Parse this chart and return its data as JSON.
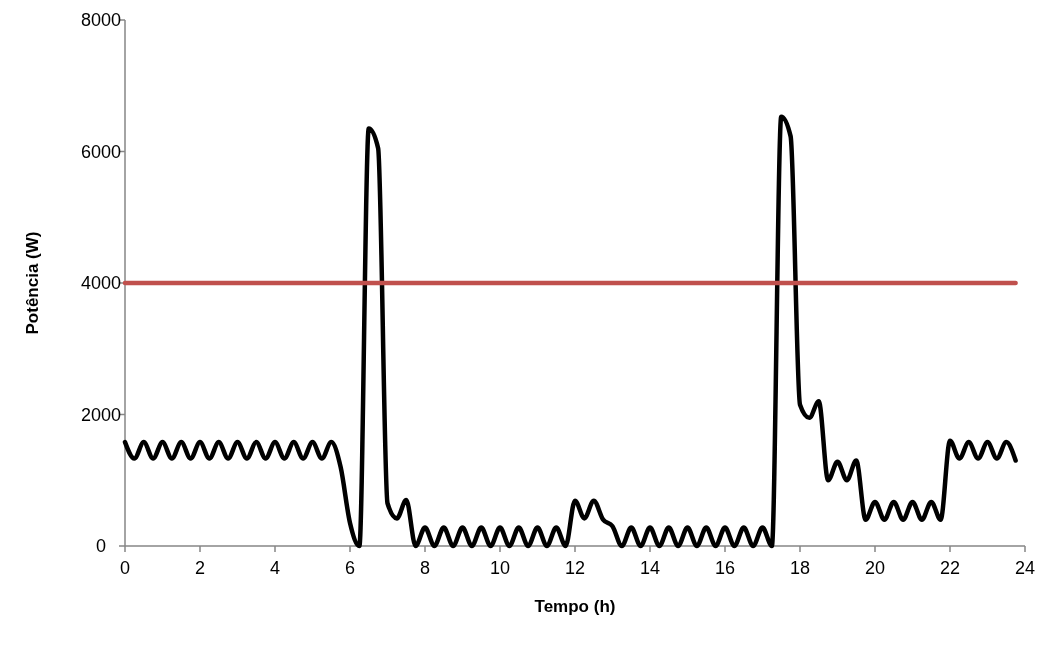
{
  "chart_data": {
    "type": "line",
    "xlabel": "Tempo (h)",
    "ylabel": "Potência (W)",
    "xlim": [
      0,
      24
    ],
    "xticks": [
      0,
      2,
      4,
      6,
      8,
      10,
      12,
      14,
      16,
      18,
      20,
      22,
      24
    ],
    "ylim": [
      0,
      8000
    ],
    "yticks": [
      0,
      2000,
      4000,
      6000,
      8000
    ],
    "grid": false,
    "marker": "none",
    "line_style": "solid",
    "series": [
      {
        "color": "#000000",
        "x": [
          0,
          0.25,
          0.5,
          0.75,
          1,
          1.25,
          1.5,
          1.75,
          2,
          2.25,
          2.5,
          2.75,
          3,
          3.25,
          3.5,
          3.75,
          4,
          4.25,
          4.5,
          4.75,
          5,
          5.25,
          5.5,
          5.75,
          6,
          6.25,
          6.5,
          6.75,
          7,
          7.25,
          7.5,
          7.75,
          8,
          8.25,
          8.5,
          8.75,
          9,
          9.25,
          9.5,
          9.75,
          10,
          10.25,
          10.5,
          10.75,
          11,
          11.25,
          11.5,
          11.75,
          12,
          12.25,
          12.5,
          12.75,
          13,
          13.25,
          13.5,
          13.75,
          14,
          14.25,
          14.5,
          14.75,
          15,
          15.25,
          15.5,
          15.75,
          16,
          16.25,
          16.5,
          16.75,
          17,
          17.25,
          17.5,
          17.75,
          18,
          18.25,
          18.5,
          18.75,
          19,
          19.25,
          19.5,
          19.75,
          20,
          20.25,
          20.5,
          20.75,
          21,
          21.25,
          21.5,
          21.75,
          22,
          22.25,
          22.5,
          22.75,
          23,
          23.25,
          23.5,
          23.75
        ],
        "values": [
          1580,
          1330,
          1580,
          1330,
          1580,
          1330,
          1580,
          1330,
          1580,
          1330,
          1580,
          1330,
          1580,
          1330,
          1580,
          1330,
          1580,
          1330,
          1580,
          1330,
          1580,
          1330,
          1580,
          1200,
          350,
          0,
          6350,
          6050,
          650,
          420,
          700,
          0,
          280,
          0,
          280,
          0,
          280,
          0,
          280,
          0,
          280,
          0,
          280,
          0,
          280,
          0,
          280,
          0,
          690,
          420,
          690,
          400,
          300,
          0,
          280,
          0,
          280,
          0,
          280,
          0,
          280,
          0,
          280,
          0,
          280,
          0,
          280,
          0,
          280,
          0,
          6530,
          6230,
          2150,
          1950,
          2200,
          1000,
          1280,
          1000,
          1300,
          400,
          670,
          400,
          670,
          400,
          670,
          400,
          670,
          400,
          1600,
          1330,
          1580,
          1330,
          1580,
          1330,
          1580,
          1300
        ]
      },
      {
        "color": "#c0504d",
        "x": [
          0,
          23.75
        ],
        "values": [
          4000,
          4000
        ]
      }
    ]
  }
}
